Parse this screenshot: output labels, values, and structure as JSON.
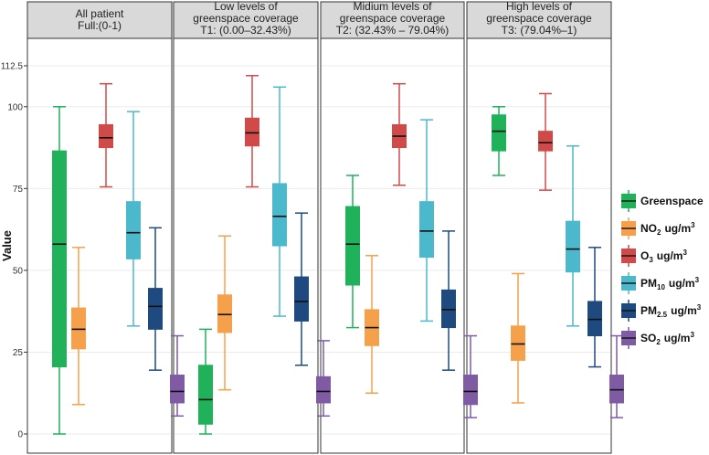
{
  "chart_data": {
    "type": "boxplot",
    "ylabel": "Value",
    "ylim": [
      0,
      112.5
    ],
    "yticks": [
      "0",
      "25",
      "50",
      "75",
      "100",
      "112.5"
    ],
    "ytick_values": [
      0,
      25,
      50,
      75,
      100,
      112.5
    ],
    "grid": true,
    "legend_position": "right",
    "panels": [
      {
        "title_line1": "All patient",
        "title_line2": "Full:(0-1)",
        "title_line3": ""
      },
      {
        "title_line1": "Low levels of",
        "title_line2": "greenspace  coverage",
        "title_line3": "T1: (0.00–32.43%)"
      },
      {
        "title_line1": "Midium levels of",
        "title_line2": "greenspace  coverage",
        "title_line3": "T2: (32.43% – 79.04%)"
      },
      {
        "title_line1": "High levels of",
        "title_line2": "greenspace coverage",
        "title_line3": "T3: (79.04%–1)"
      }
    ],
    "series": [
      {
        "name": "Greenspace",
        "legend_main": "Greenspace",
        "legend_sub": "",
        "legend_unit": "",
        "legend_sup": "",
        "color": "#1fb25a",
        "boxes": [
          {
            "min": 0,
            "q1": 20.5,
            "median": 58,
            "q3": 86.5,
            "max": 100
          },
          {
            "min": 0,
            "q1": 3,
            "median": 10.5,
            "q3": 21,
            "max": 32
          },
          {
            "min": 32.5,
            "q1": 45.5,
            "median": 58,
            "q3": 69.5,
            "max": 79
          },
          {
            "min": 79,
            "q1": 86.5,
            "median": 92.5,
            "q3": 97.5,
            "max": 100
          }
        ]
      },
      {
        "name": "NO2",
        "legend_main": "NO",
        "legend_sub": "2",
        "legend_unit": "ug/m",
        "legend_sup": "3",
        "color": "#f5a04a",
        "boxes": [
          {
            "min": 9,
            "q1": 26,
            "median": 32,
            "q3": 38.5,
            "max": 57
          },
          {
            "min": 13.5,
            "q1": 31,
            "median": 36.5,
            "q3": 42.5,
            "max": 60.5
          },
          {
            "min": 12.5,
            "q1": 27,
            "median": 32.5,
            "q3": 38,
            "max": 54.5
          },
          {
            "min": 9.5,
            "q1": 22.5,
            "median": 27.5,
            "q3": 33,
            "max": 49
          }
        ]
      },
      {
        "name": "O3",
        "legend_main": "O",
        "legend_sub": "3",
        "legend_unit": "ug/m",
        "legend_sup": "3",
        "color": "#d04a4a",
        "boxes": [
          {
            "min": 75.5,
            "q1": 87.5,
            "median": 90.5,
            "q3": 94.5,
            "max": 107
          },
          {
            "min": 75.5,
            "q1": 88,
            "median": 92,
            "q3": 96.5,
            "max": 109.5
          },
          {
            "min": 76,
            "q1": 87.5,
            "median": 91,
            "q3": 94.5,
            "max": 107
          },
          {
            "min": 74.5,
            "q1": 86.5,
            "median": 89,
            "q3": 92.5,
            "max": 104
          }
        ]
      },
      {
        "name": "PM10",
        "legend_main": "PM",
        "legend_sub": "10",
        "legend_unit": "ug/m",
        "legend_sup": "3",
        "color": "#4bb8cc",
        "boxes": [
          {
            "min": 33,
            "q1": 53.5,
            "median": 61.5,
            "q3": 71,
            "max": 98.5
          },
          {
            "min": 36,
            "q1": 57.5,
            "median": 66.5,
            "q3": 76.5,
            "max": 106
          },
          {
            "min": 34.5,
            "q1": 54,
            "median": 62,
            "q3": 71,
            "max": 96
          },
          {
            "min": 33,
            "q1": 49.5,
            "median": 56.5,
            "q3": 65,
            "max": 88
          }
        ]
      },
      {
        "name": "PM2.5",
        "legend_main": "PM",
        "legend_sub": "2.5",
        "legend_unit": "ug/m",
        "legend_sup": "3",
        "color": "#1f4a80",
        "boxes": [
          {
            "min": 19.5,
            "q1": 32,
            "median": 39,
            "q3": 44.5,
            "max": 63
          },
          {
            "min": 21,
            "q1": 34.5,
            "median": 40.5,
            "q3": 48,
            "max": 67.5
          },
          {
            "min": 19.5,
            "q1": 32.5,
            "median": 38,
            "q3": 44,
            "max": 62
          },
          {
            "min": 20.5,
            "q1": 30,
            "median": 35,
            "q3": 40.5,
            "max": 57
          }
        ]
      },
      {
        "name": "SO2",
        "legend_main": "SO",
        "legend_sub": "2",
        "legend_unit": "ug/m",
        "legend_sup": "3",
        "color": "#7f5ba3",
        "boxes": [
          {
            "min": 5.5,
            "q1": 9.5,
            "median": 13,
            "q3": 18,
            "max": 30
          },
          {
            "min": 5.5,
            "q1": 9.5,
            "median": 13,
            "q3": 17.5,
            "max": 28.5
          },
          {
            "min": 5,
            "q1": 9,
            "median": 13,
            "q3": 18,
            "max": 30
          },
          {
            "min": 5,
            "q1": 9.5,
            "median": 13.5,
            "q3": 18,
            "max": 30
          }
        ]
      }
    ]
  }
}
